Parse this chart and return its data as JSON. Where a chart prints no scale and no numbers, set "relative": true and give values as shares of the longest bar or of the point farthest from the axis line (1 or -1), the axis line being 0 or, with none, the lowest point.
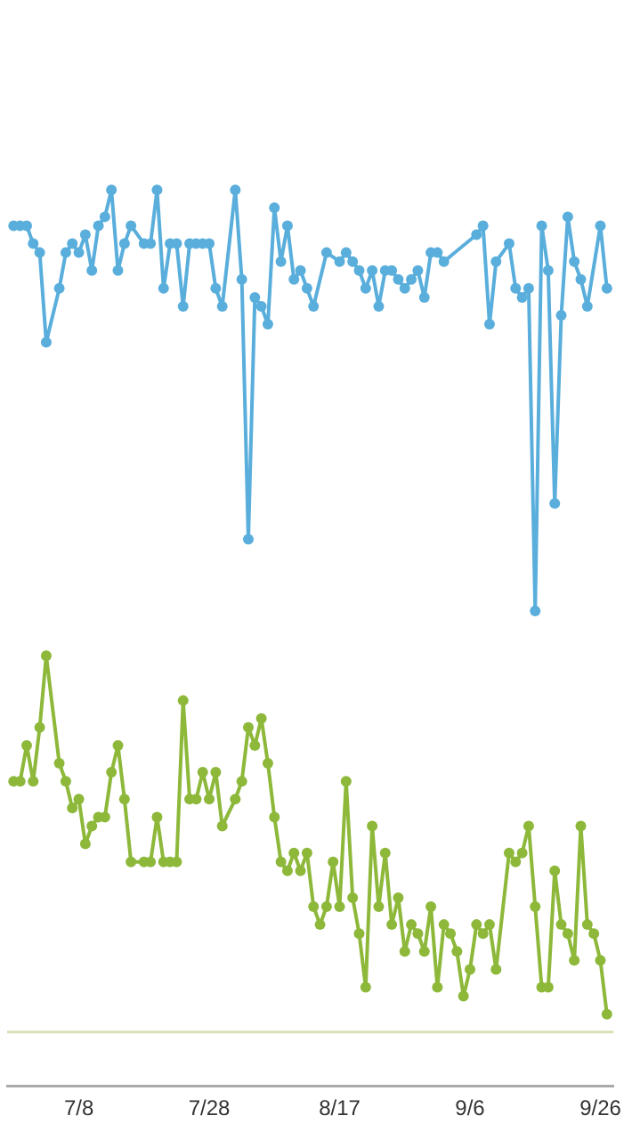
{
  "chart_data": {
    "type": "line",
    "relative": true,
    "marker": "circle",
    "line_style": "solid",
    "xlim": [
      "--06-27",
      "--09-28"
    ],
    "xticks": [
      {
        "value": "--07-08",
        "label": "7/8"
      },
      {
        "value": "--07-28",
        "label": "7/28"
      },
      {
        "value": "--08-17",
        "label": "8/17"
      },
      {
        "value": "--09-06",
        "label": "9/6"
      },
      {
        "value": "--09-26",
        "label": "9/26"
      }
    ],
    "ref_lines": [
      {
        "axis": "y",
        "value": 0.06,
        "color": "#d6e0b4"
      }
    ],
    "series": [
      {
        "color": "#5aaedc",
        "x": [
          "--06-28",
          "--06-29",
          "--06-30",
          "--07-01",
          "--07-02",
          "--07-03",
          "--07-05",
          "--07-06",
          "--07-07",
          "--07-08",
          "--07-09",
          "--07-10",
          "--07-11",
          "--07-12",
          "--07-13",
          "--07-14",
          "--07-15",
          "--07-16",
          "--07-18",
          "--07-19",
          "--07-20",
          "--07-21",
          "--07-22",
          "--07-23",
          "--07-24",
          "--07-25",
          "--07-26",
          "--07-27",
          "--07-28",
          "--07-29",
          "--07-30",
          "--08-01",
          "--08-02",
          "--08-03",
          "--08-04",
          "--08-05",
          "--08-06",
          "--08-07",
          "--08-08",
          "--08-09",
          "--08-10",
          "--08-11",
          "--08-12",
          "--08-13",
          "--08-15",
          "--08-17",
          "--08-18",
          "--08-19",
          "--08-20",
          "--08-21",
          "--08-22",
          "--08-23",
          "--08-24",
          "--08-25",
          "--08-26",
          "--08-27",
          "--08-28",
          "--08-29",
          "--08-30",
          "--08-31",
          "--09-01",
          "--09-02",
          "--09-07",
          "--09-08",
          "--09-09",
          "--09-10",
          "--09-12",
          "--09-13",
          "--09-14",
          "--09-15",
          "--09-16",
          "--09-17",
          "--09-18",
          "--09-19",
          "--09-20",
          "--09-21",
          "--09-22",
          "--09-23",
          "--09-24",
          "--09-26",
          "--09-27"
        ],
        "values": [
          0.96,
          0.96,
          0.96,
          0.94,
          0.93,
          0.83,
          0.89,
          0.93,
          0.94,
          0.93,
          0.95,
          0.91,
          0.96,
          0.97,
          1,
          0.91,
          0.94,
          0.96,
          0.94,
          0.94,
          1,
          0.89,
          0.94,
          0.94,
          0.87,
          0.94,
          0.94,
          0.94,
          0.94,
          0.89,
          0.87,
          1,
          0.9,
          0.61,
          0.88,
          0.87,
          0.85,
          0.98,
          0.92,
          0.96,
          0.9,
          0.91,
          0.89,
          0.87,
          0.93,
          0.92,
          0.93,
          0.92,
          0.91,
          0.89,
          0.91,
          0.87,
          0.91,
          0.91,
          0.9,
          0.89,
          0.9,
          0.91,
          0.88,
          0.93,
          0.93,
          0.92,
          0.95,
          0.96,
          0.85,
          0.92,
          0.94,
          0.89,
          0.88,
          0.89,
          0.53,
          0.96,
          0.91,
          0.65,
          0.86,
          0.97,
          0.92,
          0.9,
          0.87,
          0.96,
          0.89
        ]
      },
      {
        "color": "#8db83a",
        "x": [
          "--06-28",
          "--06-29",
          "--06-30",
          "--07-01",
          "--07-02",
          "--07-03",
          "--07-05",
          "--07-06",
          "--07-07",
          "--07-08",
          "--07-09",
          "--07-10",
          "--07-11",
          "--07-12",
          "--07-13",
          "--07-14",
          "--07-15",
          "--07-16",
          "--07-18",
          "--07-19",
          "--07-20",
          "--07-21",
          "--07-22",
          "--07-23",
          "--07-24",
          "--07-25",
          "--07-26",
          "--07-27",
          "--07-28",
          "--07-29",
          "--07-30",
          "--08-01",
          "--08-02",
          "--08-03",
          "--08-04",
          "--08-05",
          "--08-06",
          "--08-07",
          "--08-08",
          "--08-09",
          "--08-10",
          "--08-11",
          "--08-12",
          "--08-13",
          "--08-14",
          "--08-15",
          "--08-16",
          "--08-17",
          "--08-18",
          "--08-19",
          "--08-20",
          "--08-21",
          "--08-22",
          "--08-23",
          "--08-24",
          "--08-25",
          "--08-26",
          "--08-27",
          "--08-28",
          "--08-29",
          "--08-30",
          "--08-31",
          "--09-01",
          "--09-02",
          "--09-03",
          "--09-04",
          "--09-05",
          "--09-06",
          "--09-07",
          "--09-08",
          "--09-09",
          "--09-10",
          "--09-12",
          "--09-13",
          "--09-14",
          "--09-15",
          "--09-16",
          "--09-17",
          "--09-18",
          "--09-19",
          "--09-20",
          "--09-21",
          "--09-22",
          "--09-23",
          "--09-24",
          "--09-25",
          "--09-26",
          "--09-27"
        ],
        "values": [
          0.34,
          0.34,
          0.38,
          0.34,
          0.4,
          0.48,
          0.36,
          0.34,
          0.31,
          0.32,
          0.27,
          0.29,
          0.3,
          0.3,
          0.35,
          0.38,
          0.32,
          0.25,
          0.25,
          0.25,
          0.3,
          0.25,
          0.25,
          0.25,
          0.43,
          0.32,
          0.32,
          0.35,
          0.32,
          0.35,
          0.29,
          0.32,
          0.34,
          0.4,
          0.38,
          0.41,
          0.36,
          0.3,
          0.25,
          0.24,
          0.26,
          0.24,
          0.26,
          0.2,
          0.18,
          0.2,
          0.25,
          0.2,
          0.34,
          0.21,
          0.17,
          0.11,
          0.29,
          0.2,
          0.26,
          0.18,
          0.21,
          0.15,
          0.18,
          0.17,
          0.15,
          0.2,
          0.11,
          0.18,
          0.17,
          0.15,
          0.1,
          0.13,
          0.18,
          0.17,
          0.18,
          0.13,
          0.26,
          0.25,
          0.26,
          0.29,
          0.2,
          0.11,
          0.11,
          0.24,
          0.18,
          0.17,
          0.14,
          0.29,
          0.18,
          0.17,
          0.14,
          0.08
        ]
      }
    ]
  }
}
